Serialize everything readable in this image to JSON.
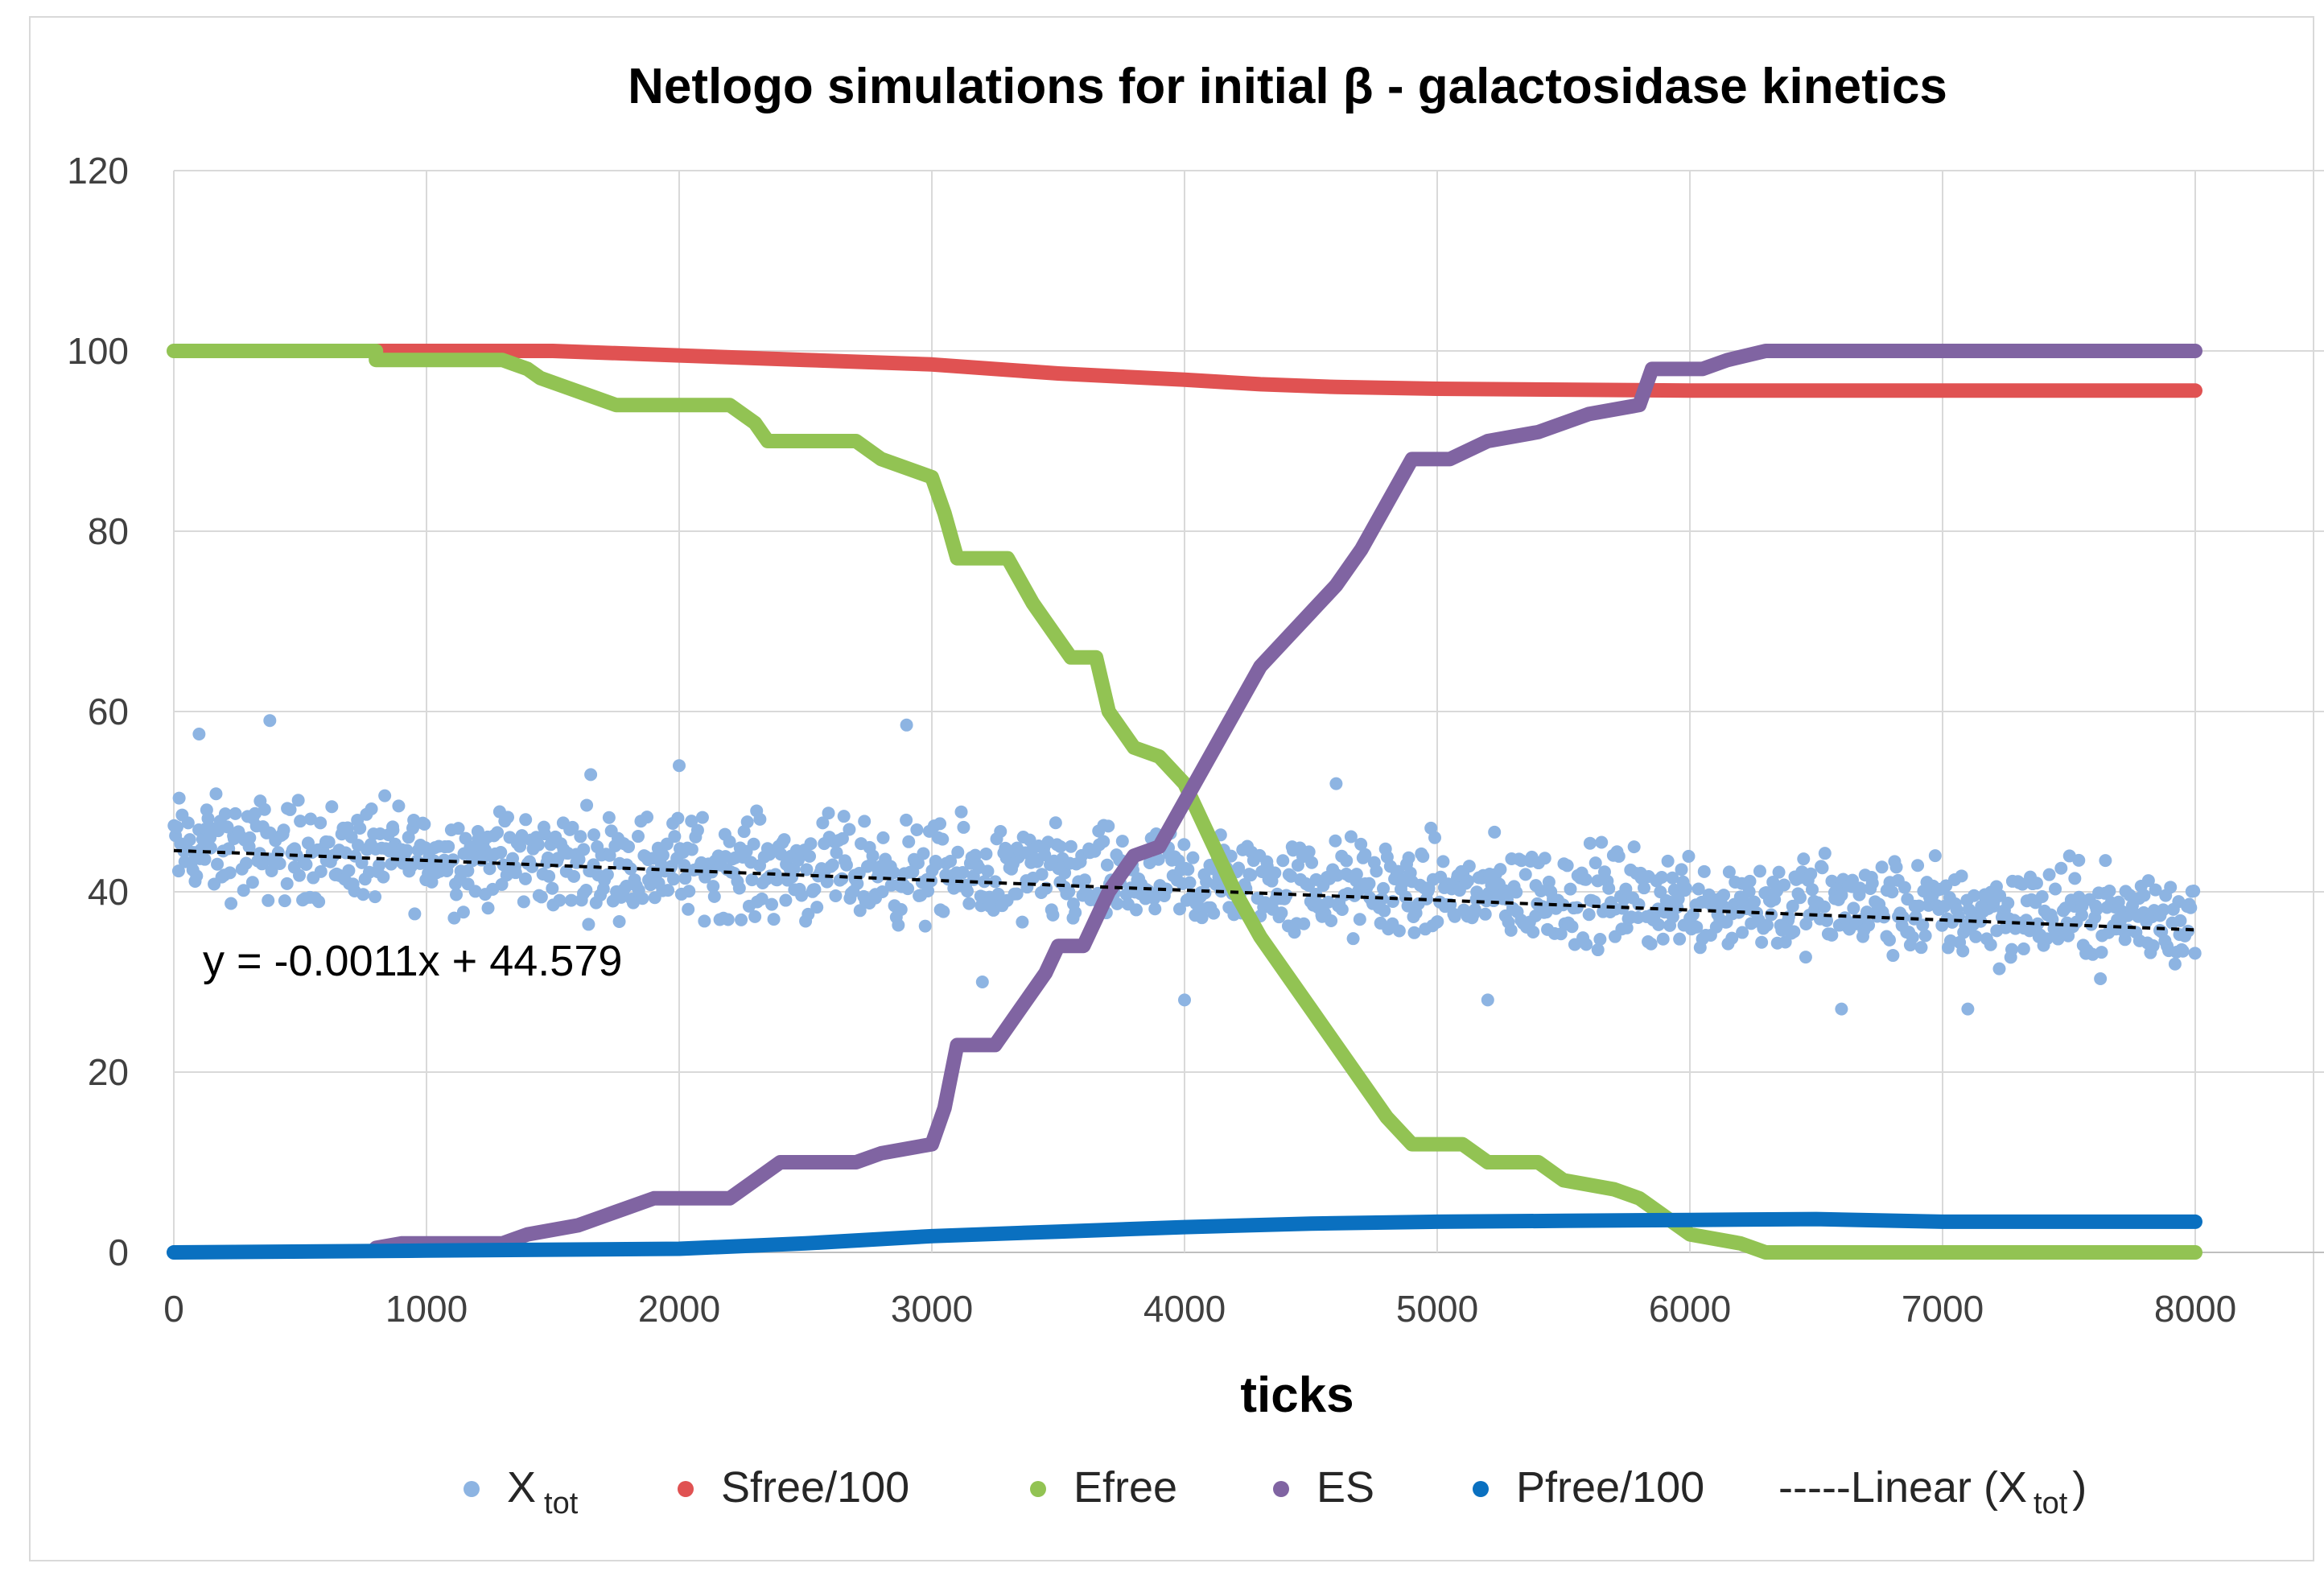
{
  "chart_data": {
    "type": "scatter",
    "title": "Netlogo simulations for initial β - galactosidase kinetics",
    "xlabel": "ticks",
    "ylabel": "",
    "xlim": [
      0,
      8000
    ],
    "ylim": [
      0,
      120
    ],
    "x_ticks": [
      "0",
      "1000",
      "2000",
      "3000",
      "4000",
      "5000",
      "6000",
      "7000",
      "8000"
    ],
    "y_ticks": [
      "0",
      "20",
      "40",
      "60",
      "80",
      "100",
      "120"
    ],
    "grid": true,
    "legend_position": "bottom",
    "trendline": {
      "label_prefix": "-----Linear (X",
      "label_sub": "tot",
      "label_suffix": ")",
      "equation": "y = -0.0011x + 44.579",
      "slope": -0.0011,
      "intercept": 44.579,
      "color": "#000000"
    },
    "series": [
      {
        "name": "X",
        "name_sub": "tot",
        "color": "#8db4e2",
        "style": "scatter",
        "trend": [
          [
            0,
            45
          ],
          [
            8000,
            37
          ]
        ],
        "spread": 6,
        "sparse_outliers": [
          [
            100,
            57.5
          ],
          [
            380,
            59
          ],
          [
            1650,
            53
          ],
          [
            2000,
            54
          ],
          [
            2900,
            58.5
          ],
          [
            4600,
            52
          ],
          [
            3200,
            30
          ],
          [
            4000,
            28
          ],
          [
            5200,
            28
          ],
          [
            6600,
            27
          ],
          [
            7100,
            27
          ]
        ]
      },
      {
        "name": "Sfree/100",
        "color": "#e05252",
        "style": "step",
        "points": [
          [
            800,
            100
          ],
          [
            1500,
            100
          ],
          [
            2000,
            99.5
          ],
          [
            2500,
            99
          ],
          [
            3000,
            98.5
          ],
          [
            3500,
            97.5
          ],
          [
            4000,
            96.8
          ],
          [
            4300,
            96.3
          ],
          [
            4600,
            96
          ],
          [
            5000,
            95.8
          ],
          [
            6000,
            95.6
          ],
          [
            8000,
            95.6
          ]
        ]
      },
      {
        "name": "Efree",
        "color": "#92c353",
        "style": "step",
        "points": [
          [
            0,
            100
          ],
          [
            800,
            100
          ],
          [
            800,
            99
          ],
          [
            1300,
            99
          ],
          [
            1400,
            98
          ],
          [
            1450,
            97
          ],
          [
            1550,
            96
          ],
          [
            1650,
            95
          ],
          [
            1750,
            94
          ],
          [
            2200,
            94
          ],
          [
            2300,
            92
          ],
          [
            2350,
            90
          ],
          [
            2700,
            90
          ],
          [
            2800,
            88
          ],
          [
            3000,
            86
          ],
          [
            3050,
            82
          ],
          [
            3100,
            77
          ],
          [
            3300,
            77
          ],
          [
            3400,
            72
          ],
          [
            3500,
            68
          ],
          [
            3550,
            66
          ],
          [
            3650,
            66
          ],
          [
            3700,
            60
          ],
          [
            3800,
            56
          ],
          [
            3900,
            55
          ],
          [
            4000,
            52
          ],
          [
            4100,
            46
          ],
          [
            4200,
            40
          ],
          [
            4300,
            35
          ],
          [
            4400,
            31
          ],
          [
            4500,
            27
          ],
          [
            4600,
            23
          ],
          [
            4700,
            19
          ],
          [
            4800,
            15
          ],
          [
            4900,
            12
          ],
          [
            5100,
            12
          ],
          [
            5200,
            10
          ],
          [
            5400,
            10
          ],
          [
            5500,
            8
          ],
          [
            5700,
            7
          ],
          [
            5800,
            6
          ],
          [
            5900,
            4
          ],
          [
            6000,
            2
          ],
          [
            6200,
            1
          ],
          [
            6300,
            0
          ],
          [
            8000,
            0
          ]
        ]
      },
      {
        "name": "ES",
        "color": "#8064a2",
        "style": "step",
        "points": [
          [
            800,
            0.5
          ],
          [
            900,
            1
          ],
          [
            1300,
            1
          ],
          [
            1400,
            2
          ],
          [
            1600,
            3
          ],
          [
            1700,
            4
          ],
          [
            1800,
            5
          ],
          [
            1900,
            6
          ],
          [
            2200,
            6
          ],
          [
            2300,
            8
          ],
          [
            2400,
            10
          ],
          [
            2700,
            10
          ],
          [
            2800,
            11
          ],
          [
            3000,
            12
          ],
          [
            3050,
            16
          ],
          [
            3100,
            23
          ],
          [
            3250,
            23
          ],
          [
            3350,
            27
          ],
          [
            3450,
            31
          ],
          [
            3500,
            34
          ],
          [
            3600,
            34
          ],
          [
            3700,
            40
          ],
          [
            3800,
            44
          ],
          [
            3900,
            45
          ],
          [
            4000,
            50
          ],
          [
            4100,
            55
          ],
          [
            4200,
            60
          ],
          [
            4300,
            65
          ],
          [
            4400,
            68
          ],
          [
            4500,
            71
          ],
          [
            4600,
            74
          ],
          [
            4700,
            78
          ],
          [
            4800,
            83
          ],
          [
            4900,
            88
          ],
          [
            5050,
            88
          ],
          [
            5200,
            90
          ],
          [
            5400,
            91
          ],
          [
            5600,
            93
          ],
          [
            5800,
            94
          ],
          [
            5850,
            98
          ],
          [
            6050,
            98
          ],
          [
            6150,
            99
          ],
          [
            6300,
            100
          ],
          [
            8000,
            100
          ]
        ]
      },
      {
        "name": "Pfree/100",
        "color": "#0a70c0",
        "style": "step",
        "points": [
          [
            0,
            0
          ],
          [
            1000,
            0.2
          ],
          [
            2000,
            0.4
          ],
          [
            2500,
            1
          ],
          [
            3000,
            1.8
          ],
          [
            3500,
            2.3
          ],
          [
            4000,
            2.8
          ],
          [
            4500,
            3.2
          ],
          [
            5000,
            3.4
          ],
          [
            5500,
            3.5
          ],
          [
            6000,
            3.6
          ],
          [
            6500,
            3.7
          ],
          [
            7000,
            3.4
          ],
          [
            8000,
            3.4
          ]
        ]
      }
    ]
  }
}
